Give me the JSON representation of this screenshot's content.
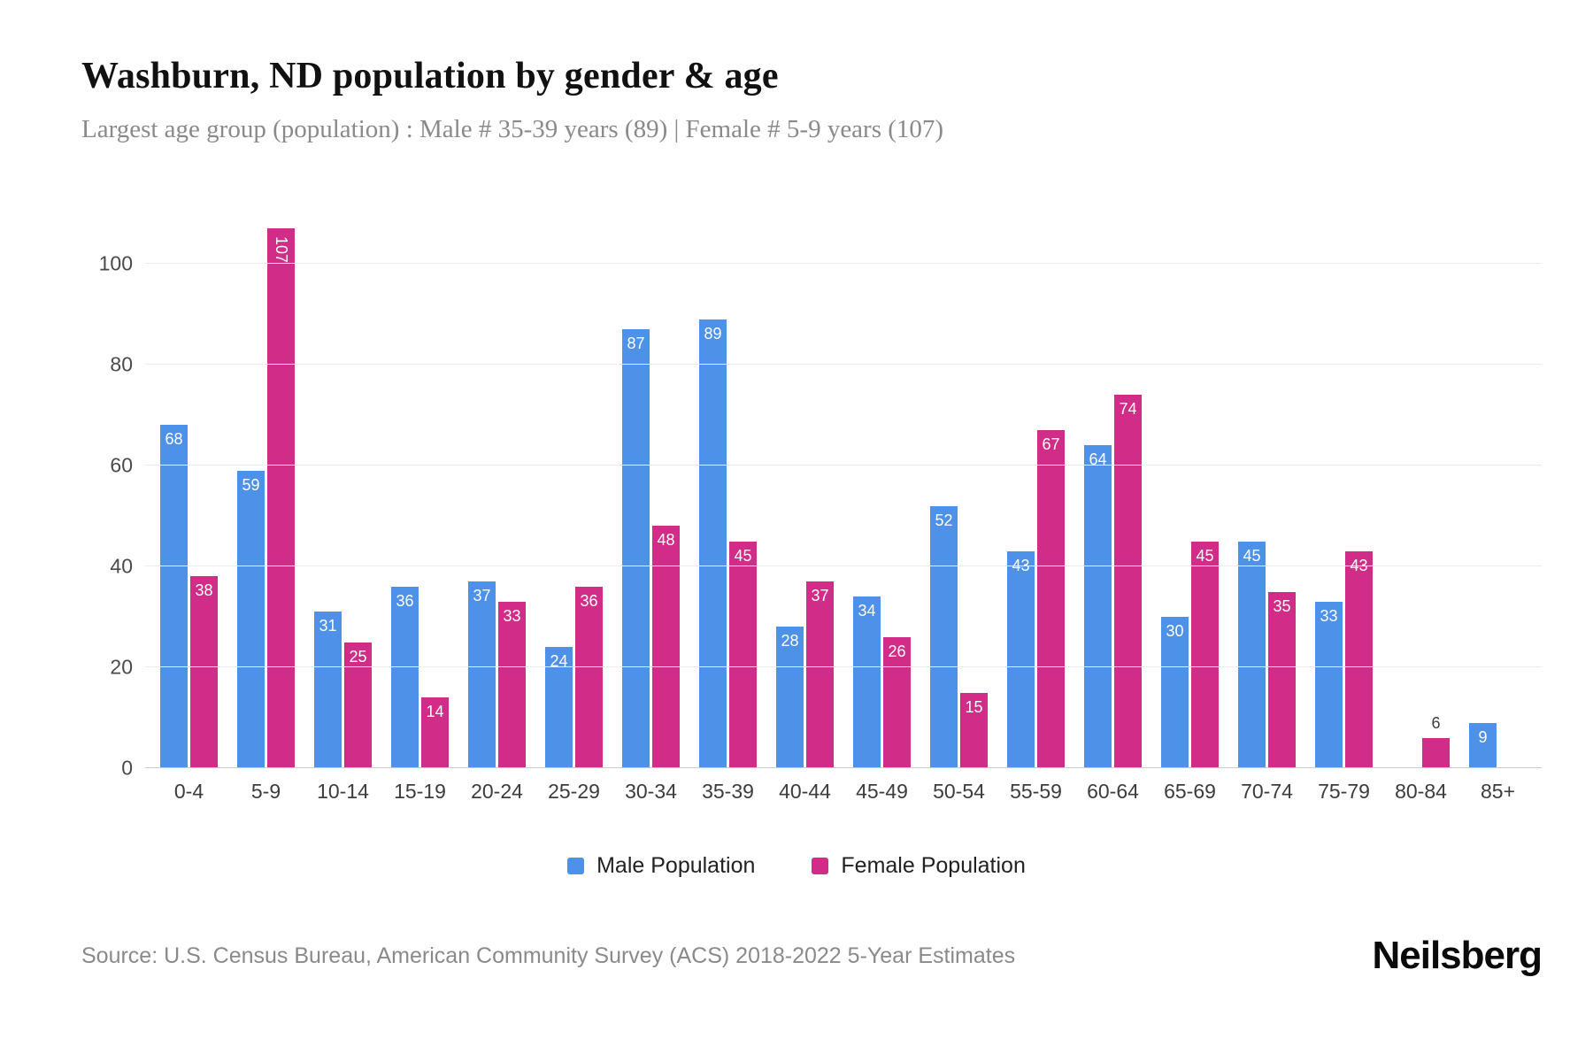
{
  "header": {
    "title": "Washburn, ND population by gender & age",
    "subtitle": "Largest age group (population) : Male # 35-39 years (89) | Female # 5-9 years (107)"
  },
  "chart_data": {
    "type": "bar",
    "title": "Washburn, ND population by gender & age",
    "categories": [
      "0-4",
      "5-9",
      "10-14",
      "15-19",
      "20-24",
      "25-29",
      "30-34",
      "35-39",
      "40-44",
      "45-49",
      "50-54",
      "55-59",
      "60-64",
      "65-69",
      "70-74",
      "75-79",
      "80-84",
      "85+"
    ],
    "series": [
      {
        "name": "Male Population",
        "color": "#4e91e9",
        "values": [
          68,
          59,
          31,
          36,
          37,
          24,
          87,
          89,
          28,
          34,
          52,
          43,
          64,
          30,
          45,
          33,
          0,
          9
        ]
      },
      {
        "name": "Female Population",
        "color": "#d02c88",
        "values": [
          38,
          107,
          25,
          14,
          33,
          36,
          48,
          45,
          37,
          26,
          15,
          67,
          74,
          45,
          35,
          43,
          6,
          0
        ]
      }
    ],
    "xlabel": "",
    "ylabel": "",
    "ylim": [
      0,
      110
    ],
    "yticks": [
      0,
      20,
      40,
      60,
      80,
      100
    ],
    "grid": "horizontal",
    "legend_position": "bottom"
  },
  "legend": {
    "items": [
      {
        "label": "Male Population"
      },
      {
        "label": "Female Population"
      }
    ]
  },
  "footer": {
    "source": "Source: U.S. Census Bureau, American Community Survey (ACS) 2018-2022 5-Year Estimates",
    "brand": "Neilsberg"
  }
}
